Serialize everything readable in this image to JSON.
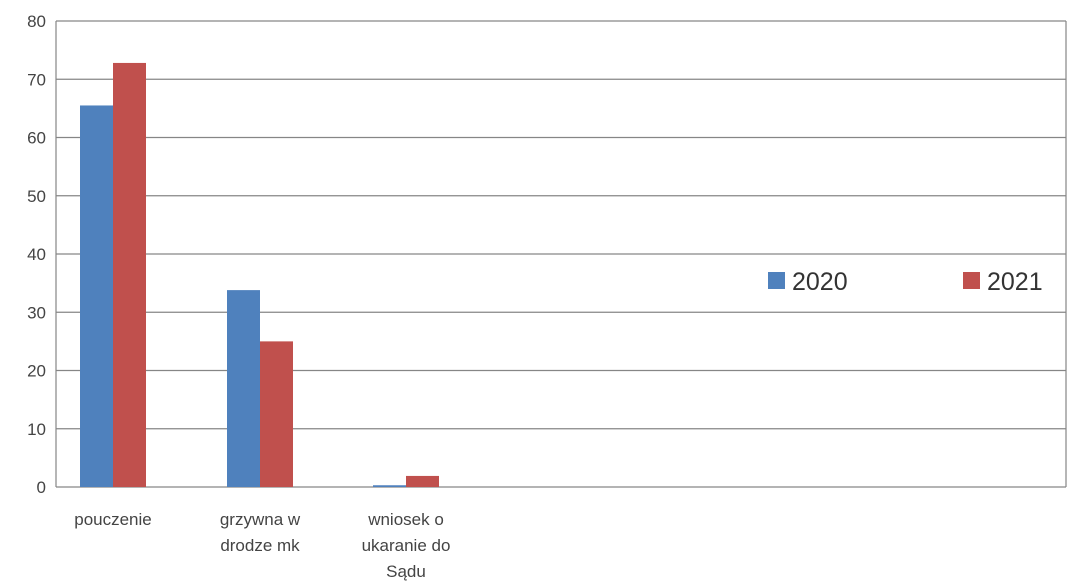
{
  "chart_data": {
    "type": "bar",
    "categories": [
      [
        "pouczenie"
      ],
      [
        "grzywna w",
        "drodze mk"
      ],
      [
        "wniosek o",
        "ukaranie do",
        "Sądu"
      ]
    ],
    "series": [
      {
        "name": "2020",
        "color": "#4F81BD",
        "values": [
          65.5,
          33.8,
          0.3
        ]
      },
      {
        "name": "2021",
        "color": "#C0504D",
        "values": [
          72.8,
          25.0,
          1.9
        ]
      }
    ],
    "y_ticks": [
      "0",
      "10",
      "20",
      "30",
      "40",
      "50",
      "60",
      "70",
      "80"
    ],
    "ylim": [
      0,
      80
    ],
    "grid": true,
    "legend_position": "right",
    "title": "",
    "xlabel": "",
    "ylabel": ""
  }
}
